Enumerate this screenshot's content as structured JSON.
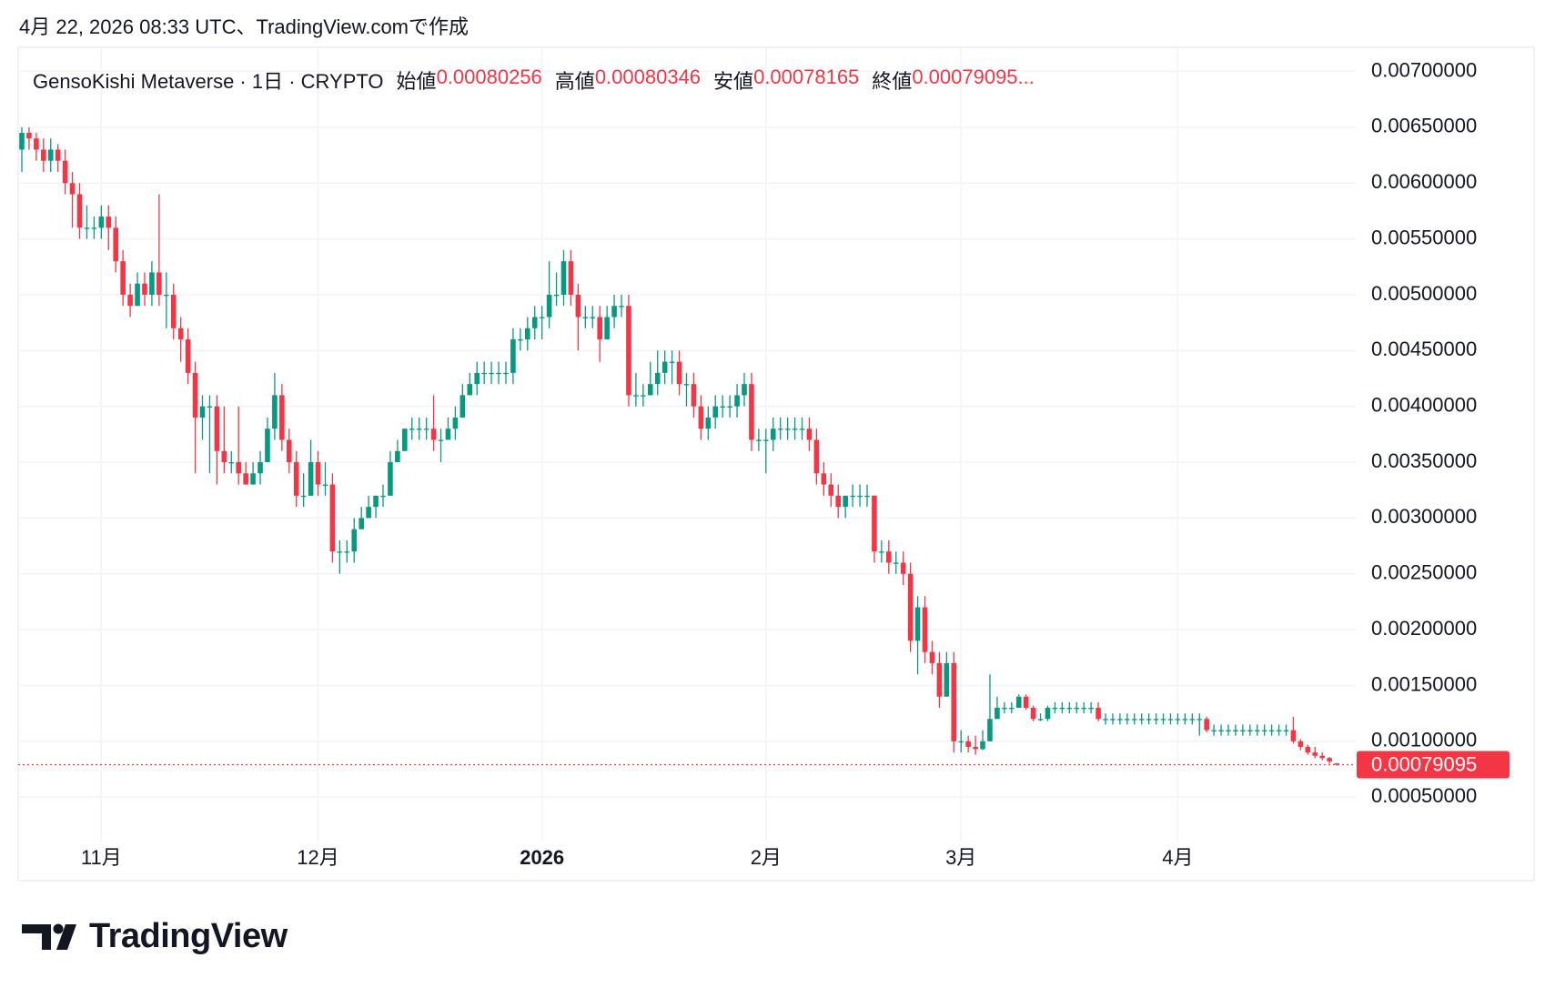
{
  "header": "4月 22, 2026 08:33 UTC、TradingView.comで作成",
  "logo_text": "TradingView",
  "chart_data": {
    "type": "candlestick",
    "legend": {
      "text": "GensoKishi Metaverse · 1日 · CRYPTO",
      "fields": [
        "始値",
        "高値",
        "安値",
        "終値"
      ],
      "close_label": "0.00079095..."
    },
    "colors": {
      "up": "#089981",
      "down": "#f23645"
    },
    "grid": true,
    "ylim": [
      0.0002,
      0.0072
    ],
    "yticks": [
      {
        "value": 0.007,
        "label": "0.00700000"
      },
      {
        "value": 0.0065,
        "label": "0.00650000"
      },
      {
        "value": 0.006,
        "label": "0.00600000"
      },
      {
        "value": 0.0055,
        "label": "0.00550000"
      },
      {
        "value": 0.005,
        "label": "0.00500000"
      },
      {
        "value": 0.0045,
        "label": "0.00450000"
      },
      {
        "value": 0.004,
        "label": "0.00400000"
      },
      {
        "value": 0.0035,
        "label": "0.00350000"
      },
      {
        "value": 0.003,
        "label": "0.00300000"
      },
      {
        "value": 0.0025,
        "label": "0.00250000"
      },
      {
        "value": 0.002,
        "label": "0.00200000"
      },
      {
        "value": 0.0015,
        "label": "0.00150000"
      },
      {
        "value": 0.001,
        "label": "0.00100000"
      },
      {
        "value": 0.0005,
        "label": "0.00050000"
      }
    ],
    "categories": [
      null,
      null,
      null,
      null,
      null,
      null,
      null,
      null,
      null,
      null,
      null,
      "11月",
      null,
      null,
      null,
      null,
      null,
      null,
      null,
      null,
      null,
      null,
      null,
      null,
      null,
      null,
      null,
      null,
      null,
      null,
      null,
      null,
      null,
      null,
      null,
      null,
      null,
      null,
      null,
      null,
      null,
      "12月",
      null,
      null,
      null,
      null,
      null,
      null,
      null,
      null,
      null,
      null,
      null,
      null,
      null,
      null,
      null,
      null,
      null,
      null,
      null,
      null,
      null,
      null,
      null,
      null,
      null,
      null,
      null,
      null,
      null,
      null,
      "2026",
      null,
      null,
      null,
      null,
      null,
      null,
      null,
      null,
      null,
      null,
      null,
      null,
      null,
      null,
      null,
      null,
      null,
      null,
      null,
      null,
      null,
      null,
      null,
      null,
      null,
      null,
      null,
      null,
      null,
      null,
      "2月",
      null,
      null,
      null,
      null,
      null,
      null,
      null,
      null,
      null,
      null,
      null,
      null,
      null,
      null,
      null,
      null,
      null,
      null,
      null,
      null,
      null,
      null,
      null,
      null,
      null,
      null,
      "3月",
      null,
      null,
      null,
      null,
      null,
      null,
      null,
      null,
      null,
      null,
      null,
      null,
      null,
      null,
      null,
      null,
      null,
      null,
      null,
      null,
      null,
      null,
      null,
      null,
      null,
      null,
      null,
      null,
      null,
      "4月",
      null,
      null,
      null,
      null,
      null,
      null,
      null,
      null,
      null,
      null,
      null,
      null,
      null,
      null,
      null,
      null,
      null,
      null,
      null
    ],
    "bold_categories": [
      "2026"
    ],
    "candles": [
      [
        0.0063,
        0.0065,
        0.0061,
        0.00645
      ],
      [
        0.00645,
        0.0065,
        0.0063,
        0.0064
      ],
      [
        0.0064,
        0.00645,
        0.0062,
        0.0063
      ],
      [
        0.0063,
        0.0064,
        0.0061,
        0.0062
      ],
      [
        0.0062,
        0.0064,
        0.0061,
        0.0063
      ],
      [
        0.0063,
        0.00635,
        0.0061,
        0.0062
      ],
      [
        0.0062,
        0.0063,
        0.0059,
        0.006
      ],
      [
        0.006,
        0.0061,
        0.0056,
        0.0059
      ],
      [
        0.0059,
        0.006,
        0.0055,
        0.0056
      ],
      [
        0.0056,
        0.0058,
        0.0055,
        0.0056
      ],
      [
        0.0056,
        0.0057,
        0.0055,
        0.0056
      ],
      [
        0.0056,
        0.0058,
        0.0055,
        0.0057
      ],
      [
        0.0057,
        0.0058,
        0.0054,
        0.0056
      ],
      [
        0.0056,
        0.0057,
        0.0052,
        0.0053
      ],
      [
        0.0053,
        0.0054,
        0.0049,
        0.005
      ],
      [
        0.005,
        0.0051,
        0.0048,
        0.0049
      ],
      [
        0.0049,
        0.0052,
        0.0049,
        0.0051
      ],
      [
        0.0051,
        0.0052,
        0.0049,
        0.005
      ],
      [
        0.005,
        0.0053,
        0.0049,
        0.0052
      ],
      [
        0.0052,
        0.0059,
        0.0049,
        0.005
      ],
      [
        0.005,
        0.0052,
        0.0047,
        0.005
      ],
      [
        0.005,
        0.0051,
        0.0046,
        0.0047
      ],
      [
        0.0047,
        0.0048,
        0.0044,
        0.0046
      ],
      [
        0.0046,
        0.0047,
        0.0042,
        0.0043
      ],
      [
        0.0043,
        0.0044,
        0.0034,
        0.0039
      ],
      [
        0.0039,
        0.0041,
        0.0037,
        0.004
      ],
      [
        0.004,
        0.0041,
        0.0034,
        0.004
      ],
      [
        0.004,
        0.0041,
        0.0033,
        0.0036
      ],
      [
        0.0036,
        0.004,
        0.0034,
        0.0035
      ],
      [
        0.0035,
        0.0036,
        0.0034,
        0.0035
      ],
      [
        0.0035,
        0.004,
        0.0033,
        0.0034
      ],
      [
        0.0034,
        0.0035,
        0.0033,
        0.0033
      ],
      [
        0.0033,
        0.0035,
        0.0033,
        0.0034
      ],
      [
        0.0034,
        0.0036,
        0.0033,
        0.0035
      ],
      [
        0.0035,
        0.0039,
        0.0035,
        0.0038
      ],
      [
        0.0038,
        0.0043,
        0.0037,
        0.0041
      ],
      [
        0.0041,
        0.0042,
        0.0036,
        0.0037
      ],
      [
        0.0037,
        0.0038,
        0.0034,
        0.0035
      ],
      [
        0.0035,
        0.0036,
        0.0031,
        0.0032
      ],
      [
        0.0032,
        0.0034,
        0.0031,
        0.0032
      ],
      [
        0.0032,
        0.0037,
        0.0032,
        0.0035
      ],
      [
        0.0035,
        0.0036,
        0.0032,
        0.0033
      ],
      [
        0.0033,
        0.0035,
        0.0032,
        0.0033
      ],
      [
        0.0033,
        0.0034,
        0.0026,
        0.0027
      ],
      [
        0.0027,
        0.0028,
        0.0025,
        0.0027
      ],
      [
        0.0027,
        0.0028,
        0.0026,
        0.0027
      ],
      [
        0.0027,
        0.003,
        0.0026,
        0.0029
      ],
      [
        0.0029,
        0.0031,
        0.0029,
        0.003
      ],
      [
        0.003,
        0.0032,
        0.003,
        0.0031
      ],
      [
        0.0031,
        0.0032,
        0.003,
        0.0032
      ],
      [
        0.0032,
        0.0033,
        0.0031,
        0.0032
      ],
      [
        0.0032,
        0.0036,
        0.0032,
        0.0035
      ],
      [
        0.0035,
        0.0037,
        0.0035,
        0.0036
      ],
      [
        0.0036,
        0.0038,
        0.0036,
        0.0038
      ],
      [
        0.0038,
        0.0039,
        0.0037,
        0.0038
      ],
      [
        0.0038,
        0.0039,
        0.0037,
        0.0038
      ],
      [
        0.0038,
        0.0039,
        0.0037,
        0.0038
      ],
      [
        0.0038,
        0.0041,
        0.0036,
        0.0037
      ],
      [
        0.0037,
        0.0038,
        0.0035,
        0.0037
      ],
      [
        0.0037,
        0.0039,
        0.0037,
        0.0038
      ],
      [
        0.0038,
        0.004,
        0.0037,
        0.0039
      ],
      [
        0.0039,
        0.0042,
        0.0039,
        0.0041
      ],
      [
        0.0041,
        0.0043,
        0.0041,
        0.0042
      ],
      [
        0.0042,
        0.0044,
        0.0041,
        0.0043
      ],
      [
        0.0043,
        0.0044,
        0.0042,
        0.0043
      ],
      [
        0.0043,
        0.0044,
        0.0042,
        0.0043
      ],
      [
        0.0043,
        0.0044,
        0.0042,
        0.0043
      ],
      [
        0.0043,
        0.0044,
        0.0042,
        0.0043
      ],
      [
        0.0043,
        0.0047,
        0.0042,
        0.0046
      ],
      [
        0.0046,
        0.0047,
        0.0045,
        0.0046
      ],
      [
        0.0046,
        0.0048,
        0.0045,
        0.0047
      ],
      [
        0.0047,
        0.0049,
        0.0046,
        0.0048
      ],
      [
        0.0048,
        0.0049,
        0.0046,
        0.0048
      ],
      [
        0.0048,
        0.0053,
        0.0047,
        0.005
      ],
      [
        0.005,
        0.0052,
        0.0049,
        0.005
      ],
      [
        0.005,
        0.0054,
        0.0049,
        0.0053
      ],
      [
        0.0053,
        0.0054,
        0.0049,
        0.005
      ],
      [
        0.005,
        0.0051,
        0.0045,
        0.0048
      ],
      [
        0.0048,
        0.0049,
        0.0047,
        0.0048
      ],
      [
        0.0048,
        0.0049,
        0.0047,
        0.0048
      ],
      [
        0.0048,
        0.0049,
        0.0044,
        0.0046
      ],
      [
        0.0046,
        0.0049,
        0.0046,
        0.0048
      ],
      [
        0.0048,
        0.005,
        0.0047,
        0.0049
      ],
      [
        0.0049,
        0.005,
        0.0048,
        0.0049
      ],
      [
        0.0049,
        0.005,
        0.004,
        0.0041
      ],
      [
        0.0041,
        0.0043,
        0.004,
        0.0041
      ],
      [
        0.0041,
        0.0042,
        0.004,
        0.0041
      ],
      [
        0.0041,
        0.0044,
        0.0041,
        0.0042
      ],
      [
        0.0042,
        0.0045,
        0.0041,
        0.0043
      ],
      [
        0.0043,
        0.0045,
        0.0042,
        0.0044
      ],
      [
        0.0044,
        0.0045,
        0.0042,
        0.0044
      ],
      [
        0.0044,
        0.0045,
        0.0041,
        0.0042
      ],
      [
        0.0042,
        0.0043,
        0.004,
        0.0042
      ],
      [
        0.0042,
        0.0043,
        0.0039,
        0.004
      ],
      [
        0.004,
        0.0041,
        0.0037,
        0.0038
      ],
      [
        0.0038,
        0.004,
        0.0037,
        0.0039
      ],
      [
        0.0039,
        0.0041,
        0.0038,
        0.004
      ],
      [
        0.004,
        0.0041,
        0.0039,
        0.004
      ],
      [
        0.004,
        0.0041,
        0.0039,
        0.004
      ],
      [
        0.004,
        0.0042,
        0.0039,
        0.0041
      ],
      [
        0.0041,
        0.0043,
        0.004,
        0.0042
      ],
      [
        0.0042,
        0.0043,
        0.0036,
        0.0037
      ],
      [
        0.0037,
        0.0038,
        0.0036,
        0.0037
      ],
      [
        0.0037,
        0.0038,
        0.0034,
        0.0037
      ],
      [
        0.0037,
        0.0039,
        0.0036,
        0.0038
      ],
      [
        0.0038,
        0.0039,
        0.0037,
        0.0038
      ],
      [
        0.0038,
        0.0039,
        0.0037,
        0.0038
      ],
      [
        0.0038,
        0.0039,
        0.0037,
        0.0038
      ],
      [
        0.0038,
        0.0039,
        0.0037,
        0.0038
      ],
      [
        0.0038,
        0.0039,
        0.0036,
        0.0037
      ],
      [
        0.0037,
        0.0038,
        0.0033,
        0.0034
      ],
      [
        0.0034,
        0.0035,
        0.0032,
        0.0033
      ],
      [
        0.0033,
        0.0034,
        0.0031,
        0.0032
      ],
      [
        0.0032,
        0.0033,
        0.003,
        0.0031
      ],
      [
        0.0031,
        0.0032,
        0.003,
        0.0032
      ],
      [
        0.0032,
        0.0033,
        0.0031,
        0.0032
      ],
      [
        0.0032,
        0.0033,
        0.0031,
        0.0032
      ],
      [
        0.0032,
        0.0033,
        0.0031,
        0.0032
      ],
      [
        0.0032,
        0.0032,
        0.0026,
        0.0027
      ],
      [
        0.0027,
        0.0028,
        0.0026,
        0.0027
      ],
      [
        0.0027,
        0.0028,
        0.0025,
        0.0026
      ],
      [
        0.0026,
        0.0027,
        0.0025,
        0.0026
      ],
      [
        0.0026,
        0.0027,
        0.0024,
        0.0025
      ],
      [
        0.0025,
        0.0026,
        0.0018,
        0.0019
      ],
      [
        0.0019,
        0.0023,
        0.0016,
        0.0022
      ],
      [
        0.0022,
        0.0023,
        0.0017,
        0.0018
      ],
      [
        0.0018,
        0.0019,
        0.0016,
        0.0017
      ],
      [
        0.0017,
        0.0018,
        0.0013,
        0.0014
      ],
      [
        0.0014,
        0.0018,
        0.0014,
        0.0017
      ],
      [
        0.0017,
        0.0018,
        0.0009,
        0.001
      ],
      [
        0.001,
        0.0011,
        0.0009,
        0.001
      ],
      [
        0.001,
        0.00105,
        0.0009,
        0.00095
      ],
      [
        0.00095,
        0.00105,
        0.00088,
        0.00093
      ],
      [
        0.00093,
        0.0011,
        0.00092,
        0.001
      ],
      [
        0.001,
        0.0016,
        0.001,
        0.0012
      ],
      [
        0.0012,
        0.0014,
        0.0012,
        0.0013
      ],
      [
        0.0013,
        0.00135,
        0.00125,
        0.0013
      ],
      [
        0.0013,
        0.00135,
        0.00125,
        0.0013
      ],
      [
        0.0013,
        0.00142,
        0.0013,
        0.0014
      ],
      [
        0.0014,
        0.00142,
        0.00128,
        0.0013
      ],
      [
        0.0013,
        0.00132,
        0.00118,
        0.0012
      ],
      [
        0.0012,
        0.00125,
        0.00118,
        0.0012
      ],
      [
        0.0012,
        0.00132,
        0.00118,
        0.0013
      ],
      [
        0.0013,
        0.00135,
        0.00125,
        0.0013
      ],
      [
        0.0013,
        0.00135,
        0.00125,
        0.0013
      ],
      [
        0.0013,
        0.00135,
        0.00125,
        0.0013
      ],
      [
        0.0013,
        0.00135,
        0.00125,
        0.0013
      ],
      [
        0.0013,
        0.00135,
        0.00125,
        0.0013
      ],
      [
        0.0013,
        0.00135,
        0.00125,
        0.0013
      ],
      [
        0.0013,
        0.00135,
        0.00118,
        0.0012
      ],
      [
        0.0012,
        0.00125,
        0.00115,
        0.0012
      ],
      [
        0.0012,
        0.00125,
        0.00115,
        0.0012
      ],
      [
        0.0012,
        0.00125,
        0.00115,
        0.0012
      ],
      [
        0.0012,
        0.00125,
        0.00115,
        0.0012
      ],
      [
        0.0012,
        0.00125,
        0.00115,
        0.0012
      ],
      [
        0.0012,
        0.00125,
        0.00115,
        0.0012
      ],
      [
        0.0012,
        0.00125,
        0.00115,
        0.0012
      ],
      [
        0.0012,
        0.00125,
        0.00115,
        0.0012
      ],
      [
        0.0012,
        0.00125,
        0.00115,
        0.0012
      ],
      [
        0.0012,
        0.00125,
        0.00115,
        0.0012
      ],
      [
        0.0012,
        0.00125,
        0.00115,
        0.0012
      ],
      [
        0.0012,
        0.00125,
        0.00115,
        0.0012
      ],
      [
        0.0012,
        0.00125,
        0.00115,
        0.0012
      ],
      [
        0.0012,
        0.00125,
        0.00105,
        0.0012
      ],
      [
        0.0012,
        0.00122,
        0.00108,
        0.0011
      ],
      [
        0.0011,
        0.00115,
        0.00105,
        0.0011
      ],
      [
        0.0011,
        0.00115,
        0.00105,
        0.0011
      ],
      [
        0.0011,
        0.00115,
        0.00105,
        0.0011
      ],
      [
        0.0011,
        0.00115,
        0.00105,
        0.0011
      ],
      [
        0.0011,
        0.00115,
        0.00105,
        0.0011
      ],
      [
        0.0011,
        0.00115,
        0.00105,
        0.0011
      ],
      [
        0.0011,
        0.00115,
        0.00105,
        0.0011
      ],
      [
        0.0011,
        0.00115,
        0.00105,
        0.0011
      ],
      [
        0.0011,
        0.00115,
        0.00105,
        0.0011
      ],
      [
        0.0011,
        0.00115,
        0.00105,
        0.0011
      ],
      [
        0.0011,
        0.00115,
        0.00105,
        0.0011
      ],
      [
        0.0011,
        0.00122,
        0.00098,
        0.001
      ],
      [
        0.001,
        0.00102,
        0.00092,
        0.00095
      ],
      [
        0.00095,
        0.00097,
        0.00088,
        0.0009
      ],
      [
        0.0009,
        0.00095,
        0.00085,
        0.00087
      ],
      [
        0.00087,
        0.0009,
        0.00083,
        0.00085
      ],
      [
        0.00085,
        0.00086,
        0.0008,
        0.00082
      ],
      [
        0.00080256,
        0.00080346,
        0.00078165,
        0.00079095
      ]
    ]
  }
}
